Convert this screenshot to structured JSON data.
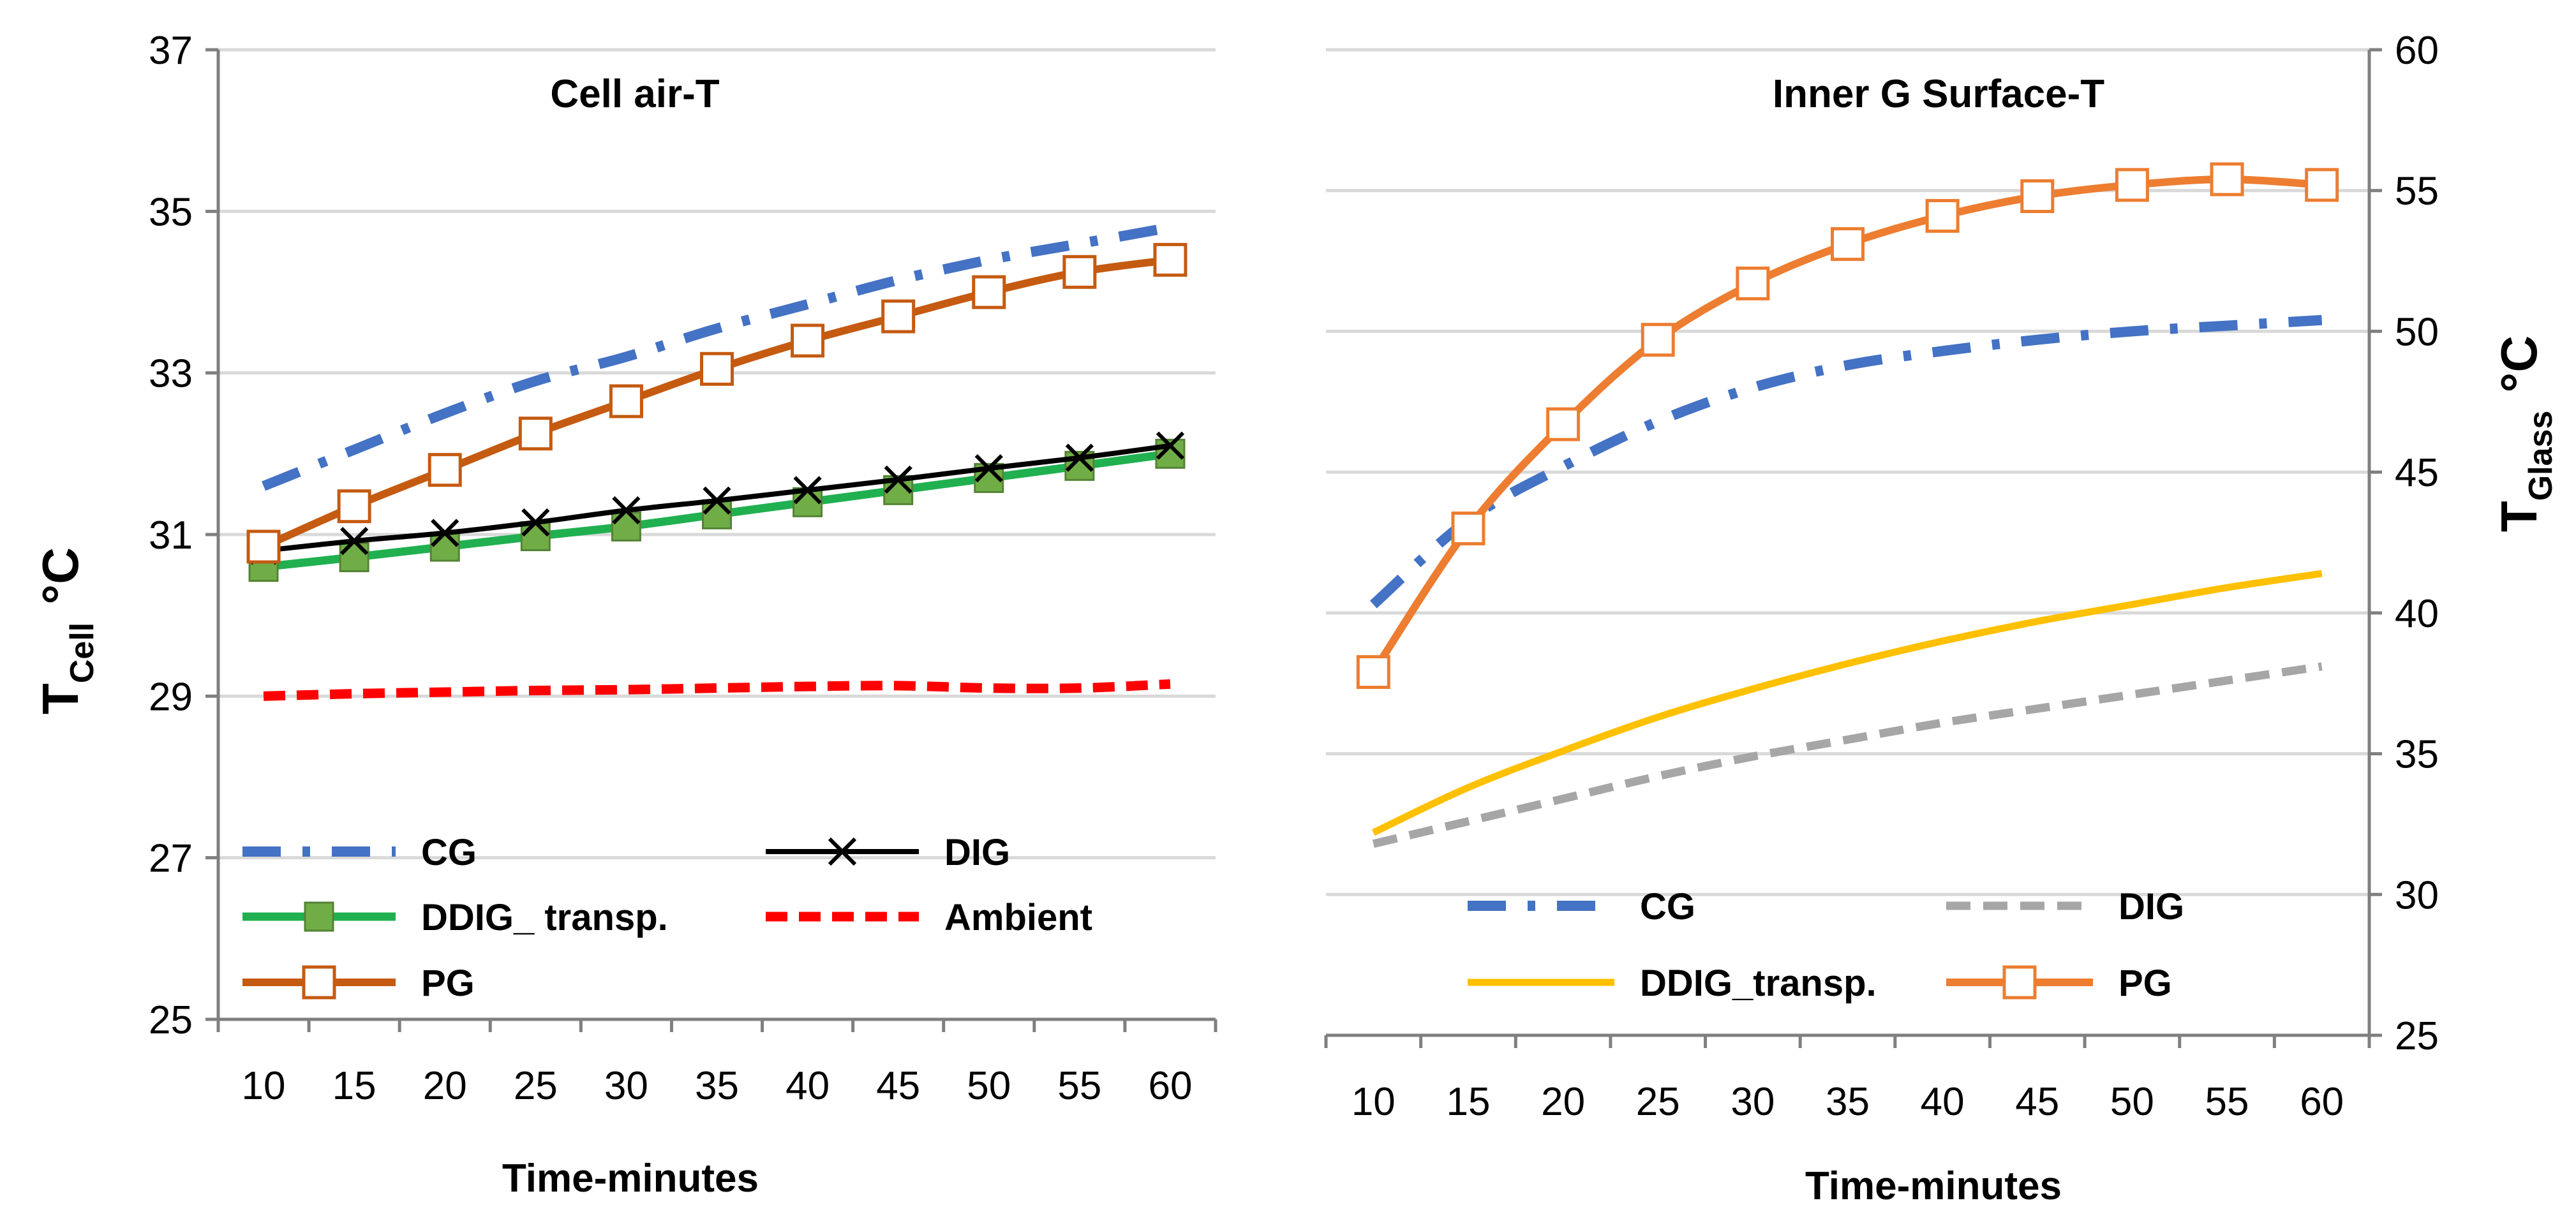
{
  "colors": {
    "CG": "#4472C4",
    "DIG": "#000000",
    "DIG_grey": "#A6A6A6",
    "DDIG": "#20B050",
    "DDIG_yellow": "#FFC000",
    "Ambient": "#FF0000",
    "PG_left": "#C55A11",
    "PG_right": "#ED7D31",
    "grid": "#D9D9D9",
    "axis": "#7F7F7F"
  },
  "chart_data": [
    {
      "type": "line",
      "title": "Cell air-T",
      "xlabel": "Time-minutes",
      "ylabel_main": "T",
      "ylabel_sub": "Cell",
      "ylabel_unit": "°C",
      "x": [
        10,
        15,
        20,
        25,
        30,
        35,
        40,
        45,
        50,
        55,
        60
      ],
      "xlim": [
        7.5,
        62.5
      ],
      "ylim": [
        25,
        37
      ],
      "yticks": [
        25,
        27,
        29,
        31,
        33,
        35,
        37
      ],
      "grid": true,
      "legend_position": "lower-left",
      "series": [
        {
          "name": "CG",
          "style": "dashdot",
          "marker": "none",
          "values": [
            31.6,
            32.05,
            32.5,
            32.9,
            33.2,
            33.55,
            33.85,
            34.15,
            34.4,
            34.6,
            34.8
          ]
        },
        {
          "name": "DIG",
          "style": "solid",
          "marker": "x",
          "values": [
            30.8,
            30.92,
            31.02,
            31.15,
            31.3,
            31.42,
            31.55,
            31.68,
            31.82,
            31.95,
            32.1
          ]
        },
        {
          "name": "DDIG_ transp.",
          "style": "solid",
          "marker": "square-filled",
          "values": [
            30.6,
            30.72,
            30.85,
            30.98,
            31.1,
            31.25,
            31.4,
            31.55,
            31.7,
            31.85,
            32.0
          ]
        },
        {
          "name": "Ambient",
          "style": "dashed",
          "marker": "none",
          "values": [
            29.0,
            29.03,
            29.05,
            29.07,
            29.08,
            29.1,
            29.12,
            29.13,
            29.1,
            29.1,
            29.15
          ]
        },
        {
          "name": "PG",
          "style": "solid",
          "marker": "square-open",
          "values": [
            30.85,
            31.35,
            31.8,
            32.25,
            32.65,
            33.05,
            33.4,
            33.7,
            34.0,
            34.25,
            34.4
          ]
        }
      ],
      "legend": [
        "CG",
        "DIG",
        "DDIG_ transp.",
        "Ambient",
        "PG"
      ]
    },
    {
      "type": "line",
      "title": "Inner G Surface-T",
      "xlabel": "Time-minutes",
      "ylabel_main": "T",
      "ylabel_sub": "Glass",
      "ylabel_unit": "°C",
      "x": [
        10,
        15,
        20,
        25,
        30,
        35,
        40,
        45,
        50,
        55,
        60
      ],
      "xlim": [
        7.5,
        62.5
      ],
      "ylim": [
        25,
        60
      ],
      "yticks": [
        25,
        30,
        35,
        40,
        45,
        50,
        55,
        60
      ],
      "grid": true,
      "legend_position": "bottom",
      "series": [
        {
          "name": "CG",
          "style": "dashdot",
          "marker": "none",
          "values": [
            40.3,
            43.3,
            45.2,
            46.8,
            48.0,
            48.8,
            49.3,
            49.7,
            50.0,
            50.2,
            50.4
          ]
        },
        {
          "name": "DIG",
          "style": "dashed",
          "marker": "none",
          "values": [
            31.8,
            32.6,
            33.4,
            34.2,
            34.9,
            35.5,
            36.1,
            36.6,
            37.1,
            37.6,
            38.1
          ]
        },
        {
          "name": "DDIG_transp.",
          "style": "solid",
          "marker": "none",
          "values": [
            32.2,
            33.8,
            35.1,
            36.3,
            37.3,
            38.2,
            39.0,
            39.7,
            40.3,
            40.9,
            41.4
          ]
        },
        {
          "name": "PG",
          "style": "solid",
          "marker": "square-open",
          "values": [
            37.9,
            43.0,
            46.7,
            49.7,
            51.7,
            53.1,
            54.1,
            54.8,
            55.2,
            55.4,
            55.2
          ]
        }
      ],
      "legend": [
        "CG",
        "DIG",
        "DDIG_transp.",
        "PG"
      ]
    }
  ]
}
